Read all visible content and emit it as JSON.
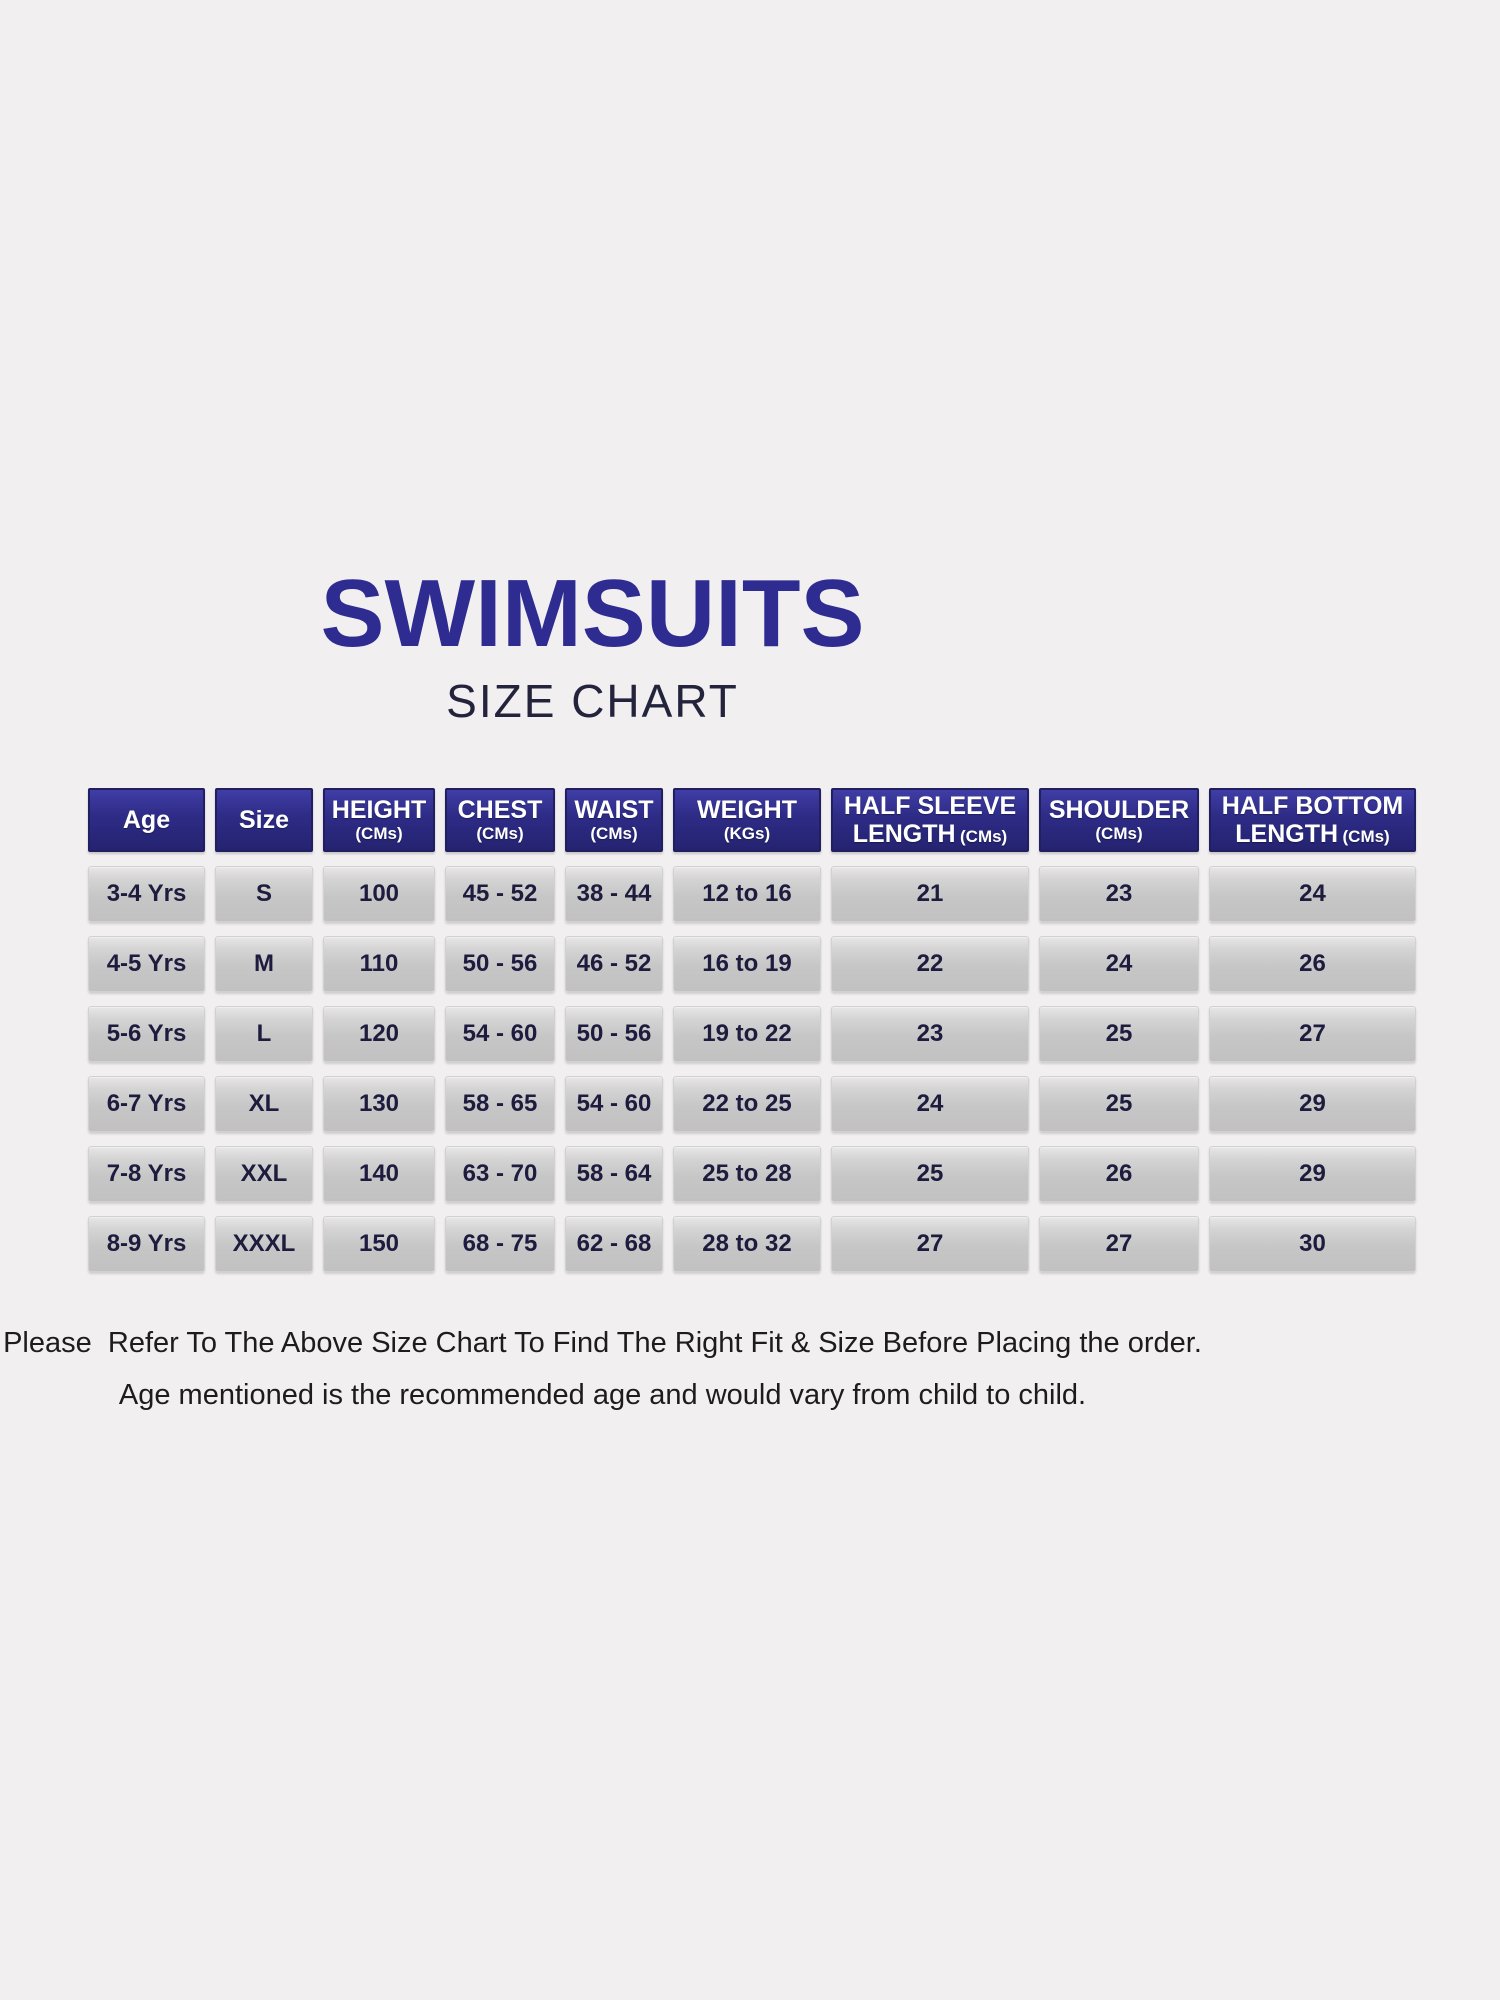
{
  "title": "SWIMSUITS",
  "subtitle": "SIZE CHART",
  "colors": {
    "page_background": "#f1eff0",
    "header_navy": "#2d2b85",
    "title_navy": "#2f2c91",
    "cell_gray": "#c6c5c5",
    "cell_text_navy": "#1d1c3e"
  },
  "table": {
    "headers": [
      {
        "label": "Age",
        "unit": ""
      },
      {
        "label": "Size",
        "unit": ""
      },
      {
        "label": "HEIGHT",
        "unit": "(CMs)"
      },
      {
        "label": "CHEST",
        "unit": "(CMs)"
      },
      {
        "label": "WAIST",
        "unit": "(CMs)"
      },
      {
        "label": "WEIGHT",
        "unit": "(KGs)"
      },
      {
        "label": "HALF SLEEVE LENGTH",
        "unit": "(CMs)"
      },
      {
        "label": "SHOULDER",
        "unit": "(CMs)"
      },
      {
        "label": "HALF BOTTOM LENGTH",
        "unit": "(CMs)"
      }
    ],
    "rows": [
      [
        "3-4 Yrs",
        "S",
        "100",
        "45 - 52",
        "38 - 44",
        "12 to 16",
        "21",
        "23",
        "24"
      ],
      [
        "4-5 Yrs",
        "M",
        "110",
        "50 - 56",
        "46 - 52",
        "16 to 19",
        "22",
        "24",
        "26"
      ],
      [
        "5-6 Yrs",
        "L",
        "120",
        "54 - 60",
        "50 - 56",
        "19 to 22",
        "23",
        "25",
        "27"
      ],
      [
        "6-7 Yrs",
        "XL",
        "130",
        "58 - 65",
        "54 - 60",
        "22 to 25",
        "24",
        "25",
        "29"
      ],
      [
        "7-8 Yrs",
        "XXL",
        "140",
        "63 - 70",
        "58 - 64",
        "25 to 28",
        "25",
        "26",
        "29"
      ],
      [
        "8-9 Yrs",
        "XXXL",
        "150",
        "68 - 75",
        "62 - 68",
        "28 to 32",
        "27",
        "27",
        "30"
      ]
    ]
  },
  "footer": {
    "line1": "Please  Refer To The Above Size Chart To Find The Right Fit & Size Before Placing the order.",
    "line2": "Age mentioned is the recommended age and would vary from child to child."
  }
}
